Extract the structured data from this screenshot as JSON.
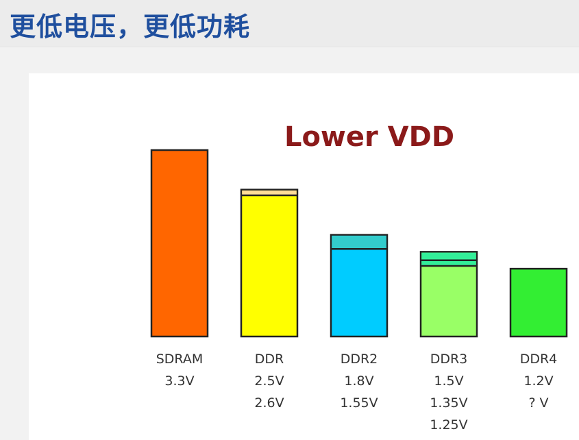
{
  "header": {
    "title": "更低电压，更低功耗"
  },
  "chart_data": {
    "type": "bar",
    "title": "Lower VDD",
    "ylabel": "",
    "xlabel": "",
    "categories": [
      "SDRAM",
      "DDR",
      "DDR2",
      "DDR3",
      "DDR4"
    ],
    "values": [
      3.3,
      2.6,
      1.8,
      1.5,
      1.2
    ],
    "labels": [
      [
        "3.3V"
      ],
      [
        "2.5V",
        "2.6V"
      ],
      [
        "1.8V",
        "1.55V"
      ],
      [
        "1.5V",
        "1.35V",
        "1.25V"
      ],
      [
        "1.2V",
        "? V"
      ]
    ],
    "levels": [
      [
        3.3
      ],
      [
        2.6,
        2.5
      ],
      [
        1.8,
        1.55
      ],
      [
        1.5,
        1.35,
        1.25
      ],
      [
        1.2
      ]
    ],
    "colors": [
      "#ff6600",
      "#ffff00",
      "#00ccff",
      "#99ff66",
      "#33ee33"
    ],
    "top_colors": [
      "#ff6600",
      "#ffdd99",
      "#33cccc",
      "#33ee99",
      "#33ee33"
    ],
    "ylim": [
      0,
      3.3
    ],
    "grid": false,
    "legend": "none"
  }
}
